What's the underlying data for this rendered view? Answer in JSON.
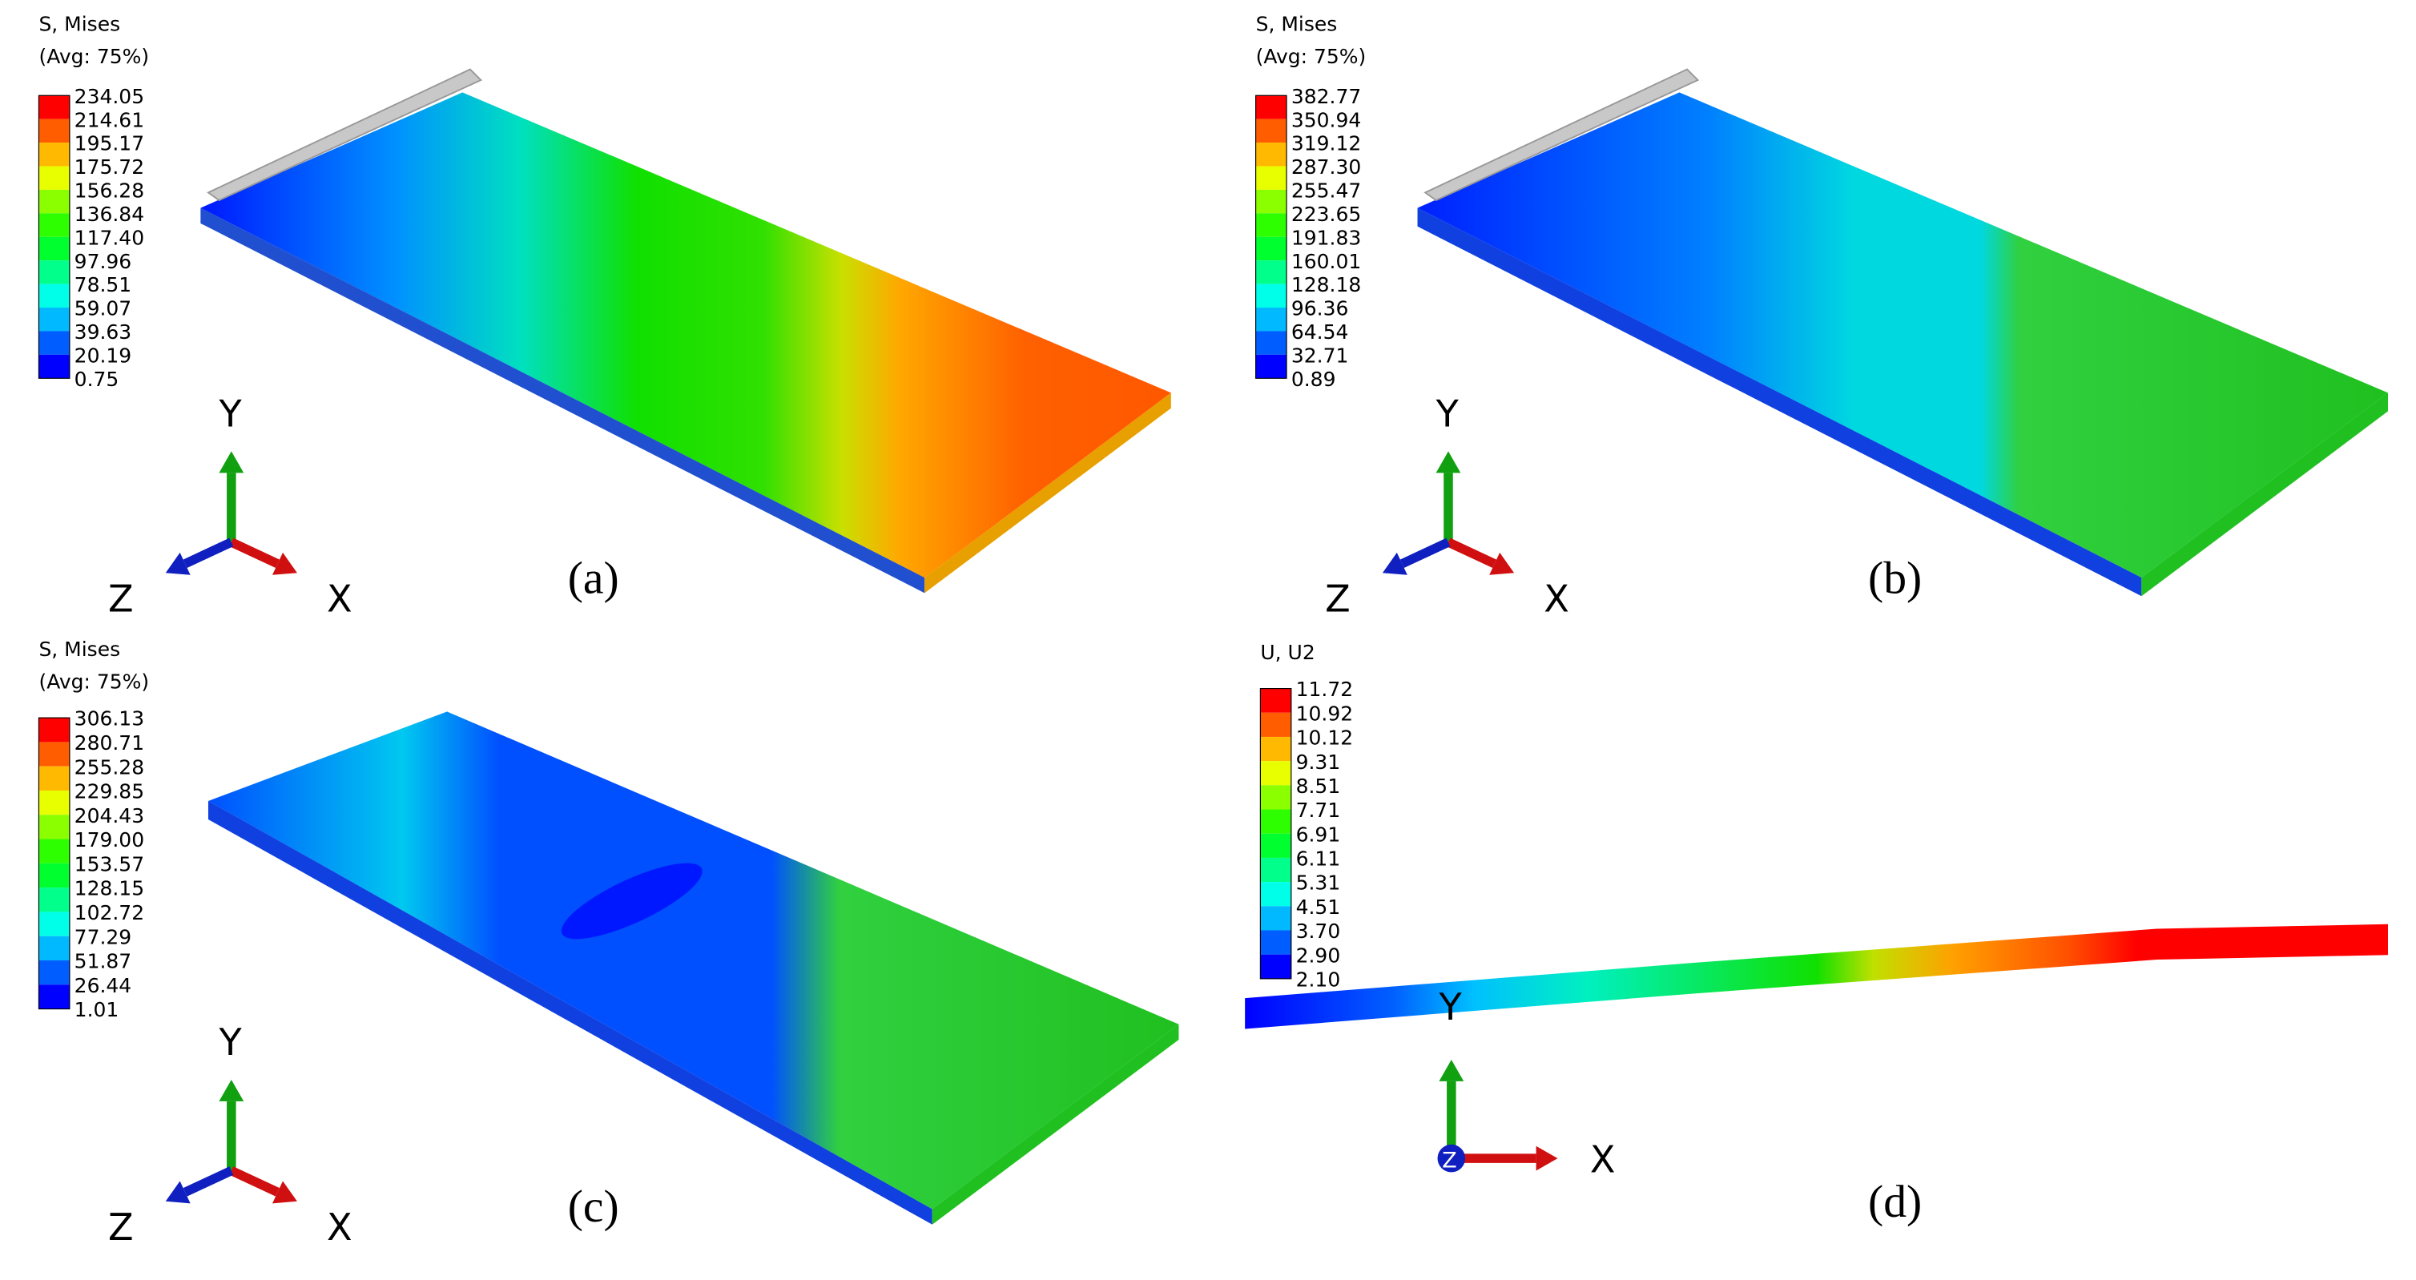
{
  "panels": [
    {
      "title": [
        "S, Mises",
        "(Avg: 75%)"
      ],
      "legend": [
        "234.05",
        "214.61",
        "195.17",
        "175.72",
        "156.28",
        "136.84",
        "117.40",
        "97.96",
        "78.51",
        "59.07",
        "39.63",
        "20.19",
        "0.75"
      ],
      "axes": {
        "y": "Y",
        "z": "Z",
        "x": "X"
      },
      "label": "(a)"
    },
    {
      "title": [
        "S, Mises",
        "(Avg: 75%)"
      ],
      "legend": [
        "382.77",
        "350.94",
        "319.12",
        "287.30",
        "255.47",
        "223.65",
        "191.83",
        "160.01",
        "128.18",
        "96.36",
        "64.54",
        "32.71",
        "0.89"
      ],
      "axes": {
        "y": "Y",
        "z": "Z",
        "x": "X"
      },
      "label": "(b)"
    },
    {
      "title": [
        "S, Mises",
        "(Avg: 75%)"
      ],
      "legend": [
        "306.13",
        "280.71",
        "255.28",
        "229.85",
        "204.43",
        "179.00",
        "153.57",
        "128.15",
        "102.72",
        "77.29",
        "51.87",
        "26.44",
        "1.01"
      ],
      "axes": {
        "y": "Y",
        "z": "Z",
        "x": "X"
      },
      "label": "(c)"
    },
    {
      "title": [
        "U, U2"
      ],
      "legend": [
        "11.72",
        "10.92",
        "10.12",
        "9.31",
        "8.51",
        "7.71",
        "6.91",
        "6.11",
        "5.31",
        "4.51",
        "3.70",
        "2.90",
        "2.10"
      ],
      "axes": {
        "y": "Y",
        "z": "Z",
        "x": "X"
      },
      "label": "(d)"
    }
  ]
}
